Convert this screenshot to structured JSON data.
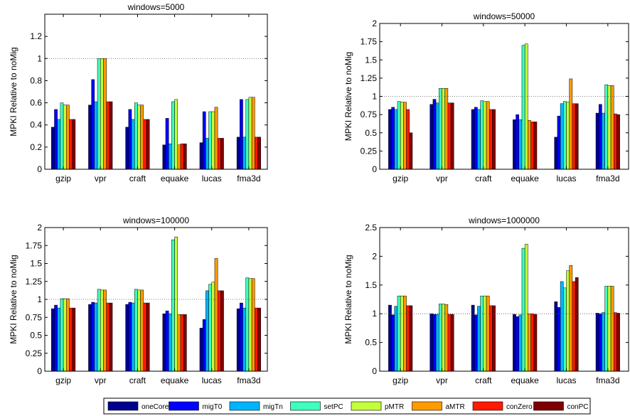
{
  "chart_data": [
    {
      "type": "bar",
      "title": "windows=5000",
      "ylabel": "MPKI Relative to noMig",
      "xlabel": "",
      "categories": [
        "gzip",
        "vpr",
        "craft",
        "equake",
        "lucas",
        "fma3d"
      ],
      "ylim": [
        0,
        1.4
      ],
      "yticks": [
        0,
        0.2,
        0.4,
        0.6,
        0.8,
        1,
        1.2
      ],
      "ytick_labels": [
        "0",
        "0.2",
        "0.4",
        "0.6",
        "0.8",
        "1",
        "1.2"
      ],
      "reference_line": 1,
      "series": [
        {
          "name": "oneCore",
          "values": [
            0.38,
            0.58,
            0.38,
            0.22,
            0.24,
            0.29
          ]
        },
        {
          "name": "migT0",
          "values": [
            0.54,
            0.81,
            0.54,
            0.46,
            0.52,
            0.63
          ]
        },
        {
          "name": "migTn",
          "values": [
            0.45,
            0.61,
            0.45,
            0.23,
            0.28,
            0.29
          ]
        },
        {
          "name": "setPC",
          "values": [
            0.6,
            1.0,
            0.6,
            0.61,
            0.52,
            0.63
          ]
        },
        {
          "name": "pMTR",
          "values": [
            0.58,
            1.0,
            0.58,
            0.63,
            0.52,
            0.65
          ]
        },
        {
          "name": "aMTR",
          "values": [
            0.58,
            1.0,
            0.58,
            0.22,
            0.56,
            0.65
          ]
        },
        {
          "name": "conZero",
          "values": [
            0.45,
            0.61,
            0.45,
            0.23,
            0.28,
            0.29
          ]
        },
        {
          "name": "conPC",
          "values": [
            0.45,
            0.61,
            0.45,
            0.23,
            0.28,
            0.29
          ]
        }
      ]
    },
    {
      "type": "bar",
      "title": "windows=50000",
      "ylabel": "MPKI Relative to noMig",
      "xlabel": "",
      "categories": [
        "gzip",
        "vpr",
        "craft",
        "equake",
        "lucas",
        "fma3d"
      ],
      "ylim": [
        0,
        2
      ],
      "yticks": [
        0,
        0.25,
        0.5,
        0.75,
        1,
        1.25,
        1.5,
        1.75,
        2
      ],
      "ytick_labels": [
        "0",
        "0.25",
        "0.5",
        "0.75",
        "1",
        "1.25",
        "1.5",
        "1.75",
        "2"
      ],
      "reference_line": 1,
      "series": [
        {
          "name": "oneCore",
          "values": [
            0.82,
            0.89,
            0.82,
            0.68,
            0.44,
            0.77
          ]
        },
        {
          "name": "migT0",
          "values": [
            0.85,
            0.96,
            0.85,
            0.75,
            0.73,
            0.89
          ]
        },
        {
          "name": "migTn",
          "values": [
            0.82,
            0.91,
            0.82,
            0.68,
            0.9,
            0.77
          ]
        },
        {
          "name": "setPC",
          "values": [
            0.93,
            1.11,
            0.94,
            1.7,
            0.93,
            1.16
          ]
        },
        {
          "name": "pMTR",
          "values": [
            0.92,
            1.11,
            0.93,
            1.72,
            0.92,
            1.15
          ]
        },
        {
          "name": "aMTR",
          "values": [
            0.92,
            1.11,
            0.93,
            0.67,
            1.24,
            1.15
          ]
        },
        {
          "name": "conZero",
          "values": [
            0.82,
            0.91,
            0.82,
            0.65,
            0.9,
            0.76
          ]
        },
        {
          "name": "conPC",
          "values": [
            0.5,
            0.91,
            0.82,
            0.65,
            0.9,
            0.75
          ]
        }
      ]
    },
    {
      "type": "bar",
      "title": "windows=100000",
      "ylabel": "MPKI Relative to noMig",
      "xlabel": "",
      "categories": [
        "gzip",
        "vpr",
        "craft",
        "equake",
        "lucas",
        "fma3d"
      ],
      "ylim": [
        0,
        2
      ],
      "yticks": [
        0,
        0.25,
        0.5,
        0.75,
        1,
        1.25,
        1.5,
        1.75,
        2
      ],
      "ytick_labels": [
        "0",
        "0.25",
        "0.5",
        "0.75",
        "1",
        "1.25",
        "1.5",
        "1.75",
        "2"
      ],
      "reference_line": 1,
      "series": [
        {
          "name": "oneCore",
          "values": [
            0.87,
            0.93,
            0.93,
            0.8,
            0.6,
            0.87
          ]
        },
        {
          "name": "migT0",
          "values": [
            0.92,
            0.96,
            0.96,
            0.84,
            0.72,
            0.95
          ]
        },
        {
          "name": "migTn",
          "values": [
            0.88,
            0.95,
            0.95,
            0.8,
            1.12,
            0.88
          ]
        },
        {
          "name": "setPC",
          "values": [
            1.01,
            1.14,
            1.14,
            1.83,
            1.21,
            1.3
          ]
        },
        {
          "name": "pMTR",
          "values": [
            1.01,
            1.13,
            1.13,
            1.87,
            1.24,
            1.29
          ]
        },
        {
          "name": "aMTR",
          "values": [
            1.01,
            1.13,
            1.13,
            0.79,
            1.57,
            1.29
          ]
        },
        {
          "name": "conZero",
          "values": [
            0.88,
            0.95,
            0.95,
            0.79,
            1.12,
            0.88
          ]
        },
        {
          "name": "conPC",
          "values": [
            0.88,
            0.95,
            0.95,
            0.79,
            1.12,
            0.88
          ]
        }
      ]
    },
    {
      "type": "bar",
      "title": "windows=1000000",
      "ylabel": "MPKI Relative to noMig",
      "xlabel": "",
      "categories": [
        "gzip",
        "vpr",
        "craft",
        "equake",
        "lucas",
        "fma3d"
      ],
      "ylim": [
        0,
        2.5
      ],
      "yticks": [
        0,
        0.5,
        1,
        1.5,
        2,
        2.5
      ],
      "ytick_labels": [
        "0",
        "0.5",
        "1",
        "1.5",
        "2",
        "2.5"
      ],
      "reference_line": 1,
      "series": [
        {
          "name": "oneCore",
          "values": [
            1.15,
            1.0,
            1.15,
            0.99,
            1.21,
            1.01
          ]
        },
        {
          "name": "migT0",
          "values": [
            0.98,
            0.99,
            0.98,
            0.95,
            1.11,
            1.0
          ]
        },
        {
          "name": "migTn",
          "values": [
            1.13,
            0.99,
            1.13,
            0.98,
            1.56,
            1.02
          ]
        },
        {
          "name": "setPC",
          "values": [
            1.31,
            1.17,
            1.31,
            2.14,
            1.45,
            1.48
          ]
        },
        {
          "name": "pMTR",
          "values": [
            1.31,
            1.17,
            1.31,
            2.21,
            1.75,
            1.48
          ]
        },
        {
          "name": "aMTR",
          "values": [
            1.31,
            1.16,
            1.31,
            1.0,
            1.84,
            1.48
          ]
        },
        {
          "name": "conZero",
          "values": [
            1.14,
            0.99,
            1.14,
            1.0,
            1.56,
            1.02
          ]
        },
        {
          "name": "conPC",
          "values": [
            1.14,
            0.99,
            1.14,
            0.99,
            1.63,
            1.01
          ]
        }
      ]
    }
  ],
  "legend": {
    "items": [
      "oneCore",
      "migT0",
      "migTn",
      "setPC",
      "pMTR",
      "aMTR",
      "conZero",
      "conPC"
    ],
    "placement": "bottom"
  },
  "colors": {
    "oneCore": "#00008f",
    "migT0": "#0000ff",
    "migTn": "#00b4ff",
    "setPC": "#3fffbf",
    "pMTR": "#c4ff3b",
    "aMTR": "#ff9a00",
    "conZero": "#ff1a00",
    "conPC": "#800000",
    "reference_line": "#555555",
    "axis": "#000000"
  }
}
